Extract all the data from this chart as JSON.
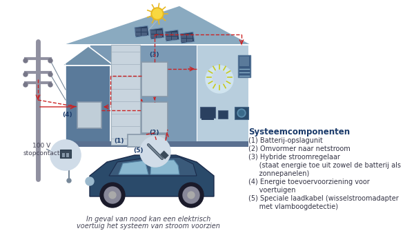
{
  "house_color": "#7b9ab5",
  "house_wall_color": "#6a8aaa",
  "garage_color": "#5a7a9a",
  "roof_color": "#8aaac0",
  "roof_dark": "#6a8aaa",
  "interior_bg": "#c8d8e8",
  "comp_color": "#c0ced8",
  "comp_border": "#8899aa",
  "car_color": "#2a4a6a",
  "car_light": "#4a7a9a",
  "window_color": "#8ab8d0",
  "arrow_color": "#cc2222",
  "pole_color": "#9090a0",
  "text_dark": "#1a3a6a",
  "text_med": "#444455",
  "title_color": "#1a3a6a",
  "sun_color": "#e8b820",
  "circle_bg": "#d8e4ee",
  "title": "Systeemcomponenten",
  "label_100v": "100 V\nstopcontact",
  "bottom_line1": "In geval van nood kan een elektrisch",
  "bottom_line2": "voertuig het systeem van stroom voorzien",
  "legend": [
    "(1) Batterij-opslagunit",
    "(2) Omvormer naar netstroom",
    "(3) Hybride stroomregelaar",
    "     (staat energie toe uit zowel de batterij als",
    "     zonnepanelen)",
    "(4) Energie toevoervoorziening voor",
    "     voertuigen",
    "(5) Speciale laadkabel (wisselstroomadapter",
    "     met vlamboogdetectie)"
  ]
}
